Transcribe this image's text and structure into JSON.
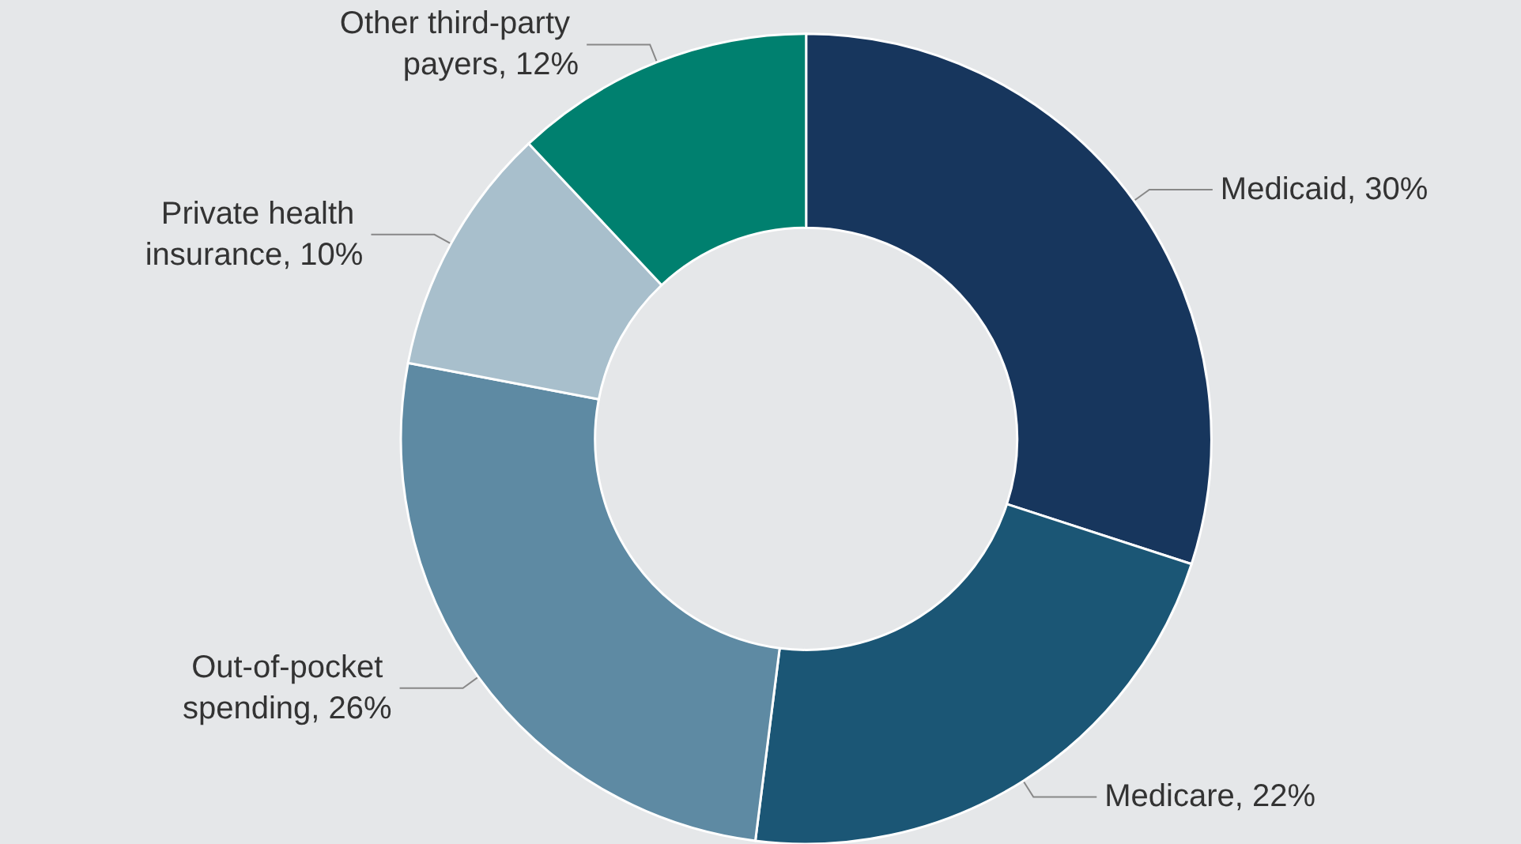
{
  "chart_data": {
    "type": "donut",
    "categories": [
      "Medicaid",
      "Medicare",
      "Out-of-pocket spending",
      "Private health insurance",
      "Other third-party payers"
    ],
    "values": [
      30,
      22,
      26,
      10,
      12
    ],
    "colors": [
      "#17365d",
      "#1b5675",
      "#5e8aa3",
      "#a8bfcc",
      "#00806f"
    ],
    "value_labels": [
      "30%",
      "22%",
      "26%",
      "10%",
      "12%"
    ]
  }
}
